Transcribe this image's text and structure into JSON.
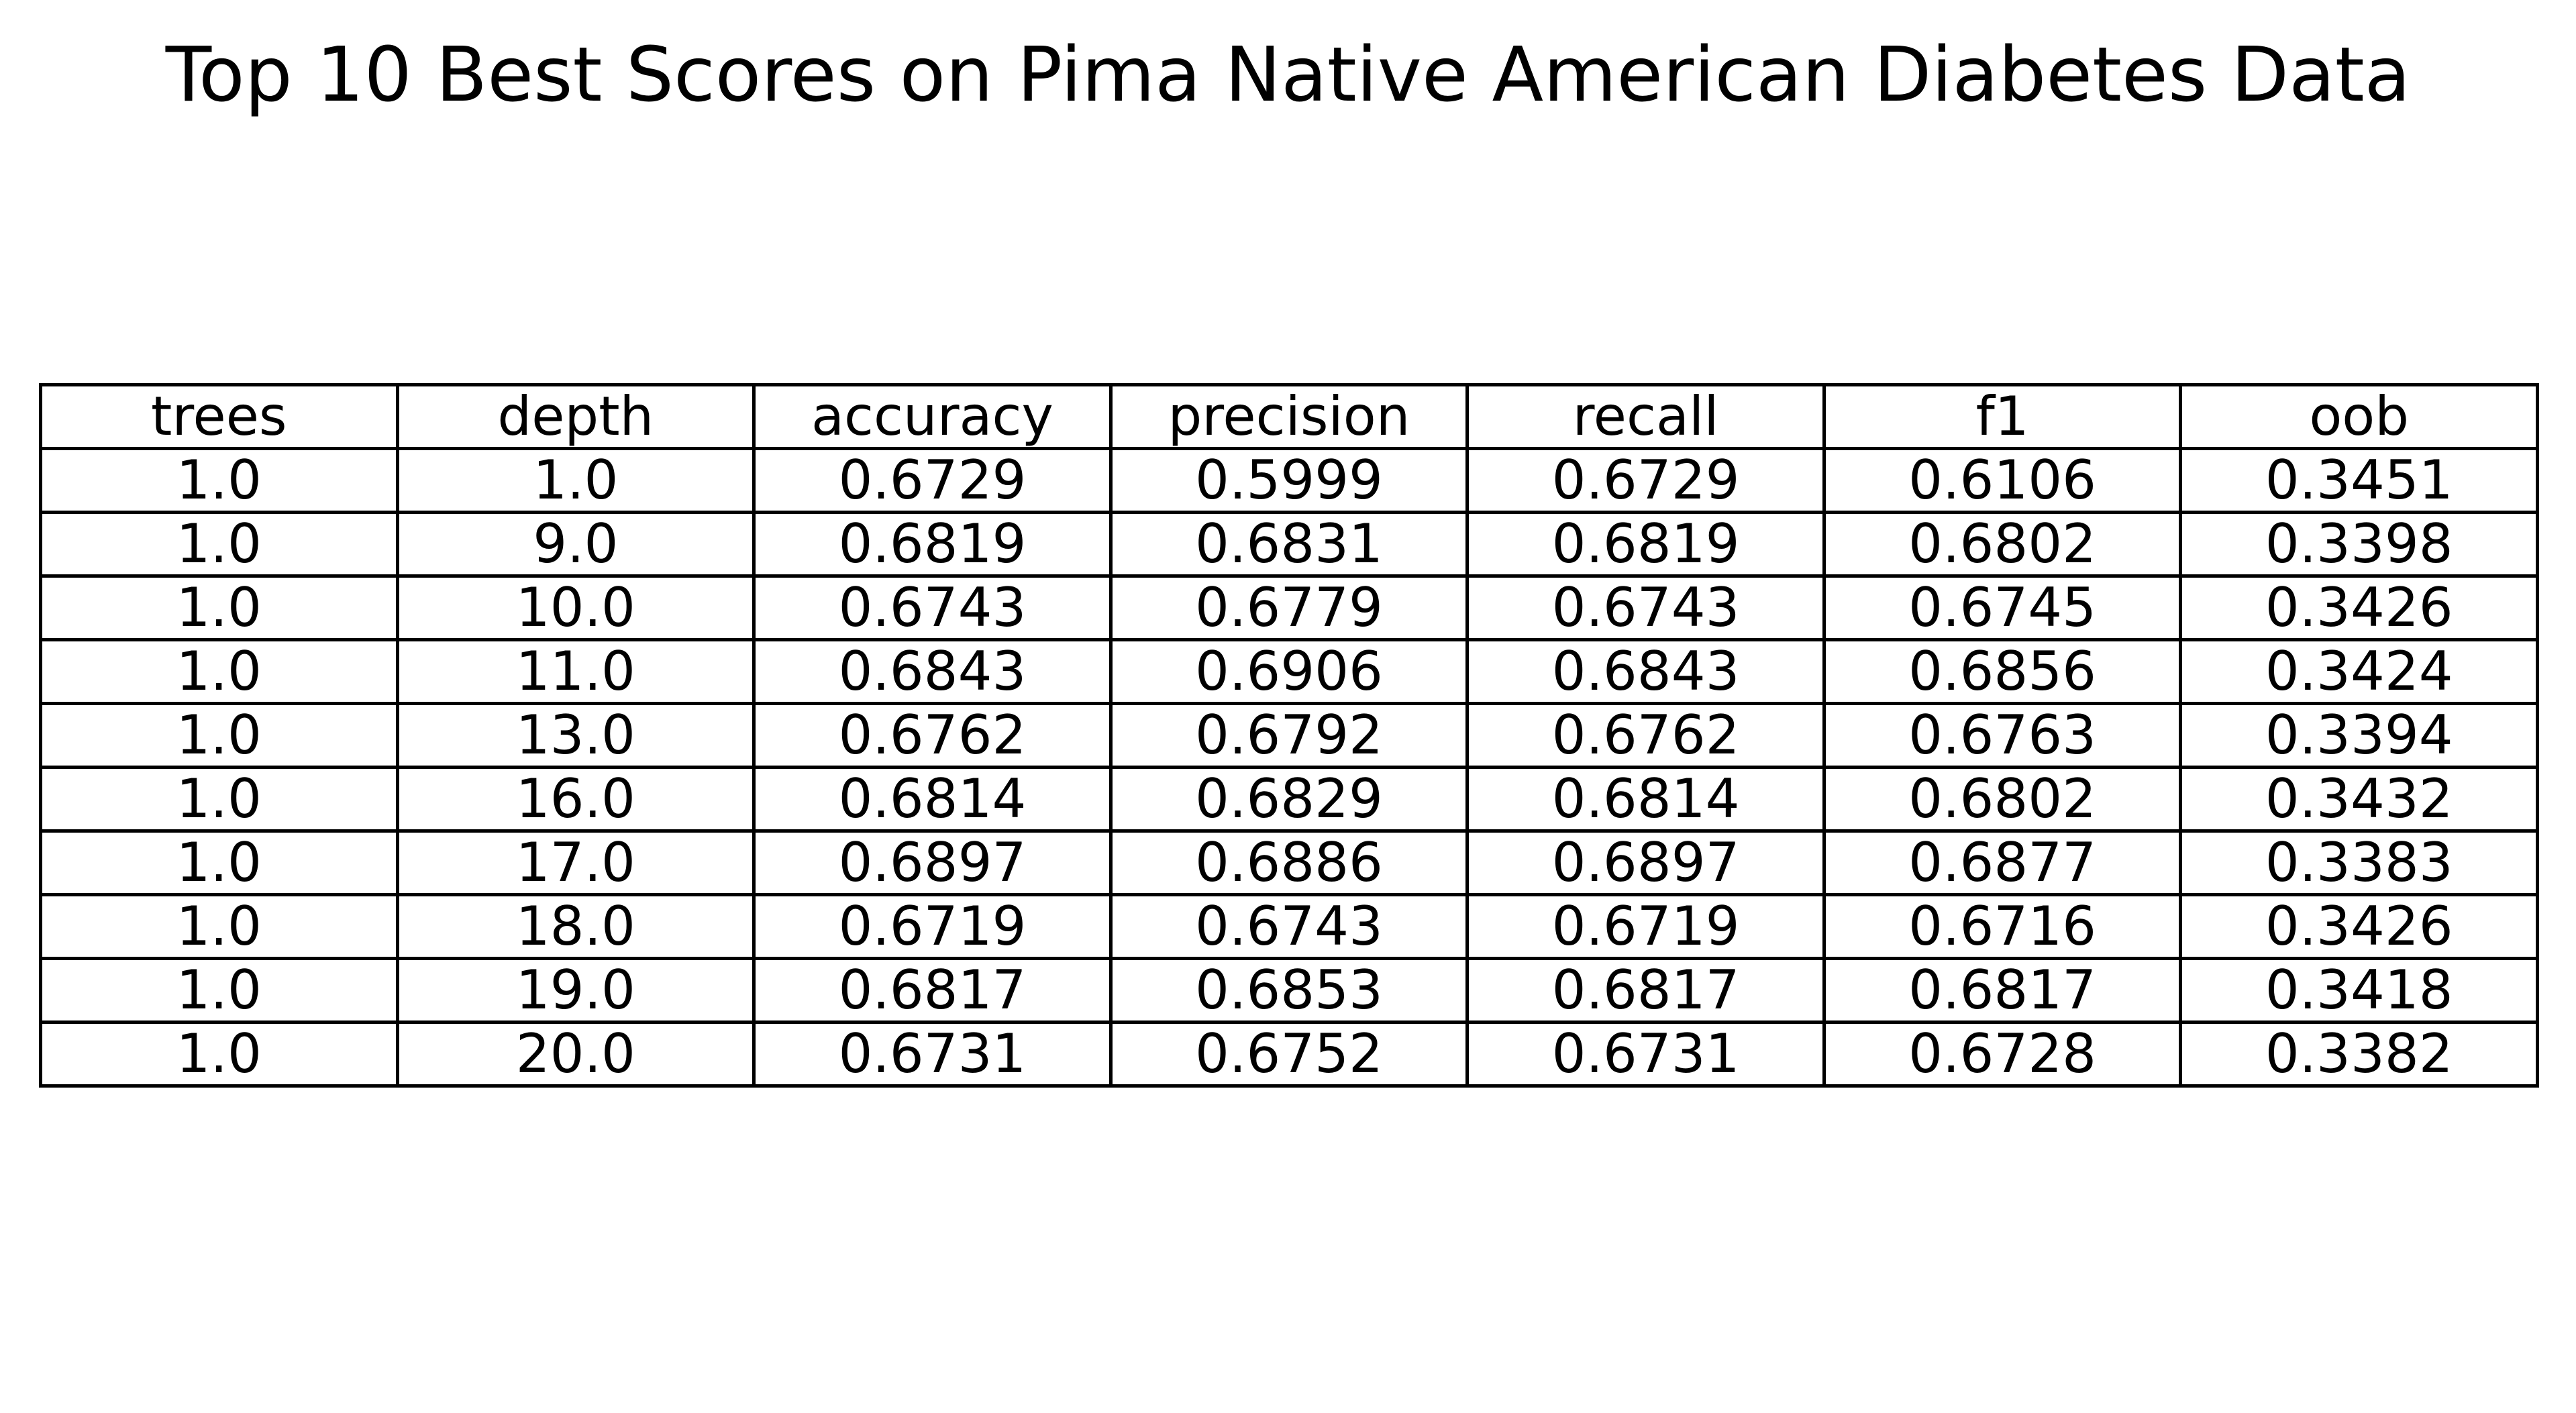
{
  "chart_data": {
    "type": "table",
    "title": "Top 10 Best Scores on Pima Native American Diabetes Data",
    "columns": [
      "trees",
      "depth",
      "accuracy",
      "precision",
      "recall",
      "f1",
      "oob"
    ],
    "rows": [
      [
        "1.0",
        "1.0",
        "0.6729",
        "0.5999",
        "0.6729",
        "0.6106",
        "0.3451"
      ],
      [
        "1.0",
        "9.0",
        "0.6819",
        "0.6831",
        "0.6819",
        "0.6802",
        "0.3398"
      ],
      [
        "1.0",
        "10.0",
        "0.6743",
        "0.6779",
        "0.6743",
        "0.6745",
        "0.3426"
      ],
      [
        "1.0",
        "11.0",
        "0.6843",
        "0.6906",
        "0.6843",
        "0.6856",
        "0.3424"
      ],
      [
        "1.0",
        "13.0",
        "0.6762",
        "0.6792",
        "0.6762",
        "0.6763",
        "0.3394"
      ],
      [
        "1.0",
        "16.0",
        "0.6814",
        "0.6829",
        "0.6814",
        "0.6802",
        "0.3432"
      ],
      [
        "1.0",
        "17.0",
        "0.6897",
        "0.6886",
        "0.6897",
        "0.6877",
        "0.3383"
      ],
      [
        "1.0",
        "18.0",
        "0.6719",
        "0.6743",
        "0.6719",
        "0.6716",
        "0.3426"
      ],
      [
        "1.0",
        "19.0",
        "0.6817",
        "0.6853",
        "0.6817",
        "0.6817",
        "0.3418"
      ],
      [
        "1.0",
        "20.0",
        "0.6731",
        "0.6752",
        "0.6731",
        "0.6728",
        "0.3382"
      ]
    ],
    "grid": true
  }
}
